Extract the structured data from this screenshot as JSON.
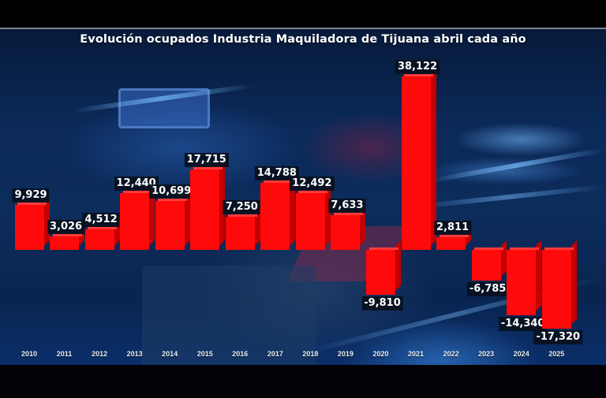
{
  "title": "Evolución ocupados Industria Maquiladora de Tijuana abril cada año",
  "colors": {
    "bar": "#ff0a0a",
    "bar_side": "#c40000",
    "label_bg": "#08101e",
    "label_text": "#ffffff",
    "background": "#0b2a5a"
  },
  "chart_data": {
    "type": "bar",
    "title": "Evolución ocupados Industria Maquiladora de Tijuana abril cada año",
    "xlabel": "",
    "ylabel": "",
    "categories": [
      "2010",
      "2011",
      "2012",
      "2013",
      "2014",
      "2015",
      "2016",
      "2017",
      "2018",
      "2019",
      "2020",
      "2021",
      "2022",
      "2023",
      "2024",
      "2025"
    ],
    "values": [
      9929,
      3026,
      4512,
      12440,
      10699,
      17715,
      7250,
      14788,
      12492,
      7633,
      -9810,
      38122,
      2811,
      -6785,
      -14340,
      -17320
    ],
    "value_labels": [
      "9,929",
      "3,026",
      "4,512",
      "12,440",
      "10,699",
      "17,715",
      "7,250",
      "14,788",
      "12,492",
      "7,633",
      "-9,810",
      "38,122",
      "2,811",
      "-6,785",
      "-14,340",
      "-17,320"
    ],
    "ylim": [
      -17320,
      38122
    ],
    "grid": false,
    "legend": null,
    "data_labels": true,
    "style": "3d-columns"
  }
}
